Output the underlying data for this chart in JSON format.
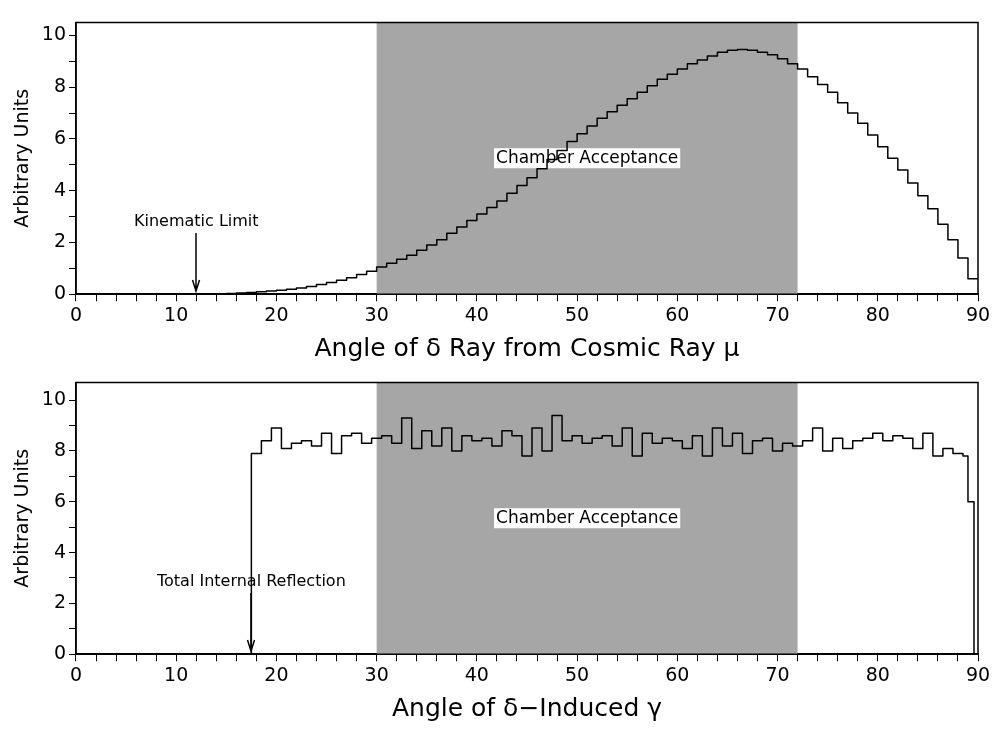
{
  "chart_data": [
    {
      "type": "histogram",
      "xlabel": "Angle of δ Ray from Cosmic Ray μ",
      "ylabel": "Arbitrary Units",
      "color": "#000000",
      "bins": [
        0,
        1,
        2,
        3,
        4,
        5,
        6,
        7,
        8,
        9,
        10,
        11,
        12,
        13,
        14,
        15,
        16,
        17,
        18,
        19,
        20,
        21,
        22,
        23,
        24,
        25,
        26,
        27,
        28,
        29,
        30,
        31,
        32,
        33,
        34,
        35,
        36,
        37,
        38,
        39,
        40,
        41,
        42,
        43,
        44,
        45,
        46,
        47,
        48,
        49,
        50,
        51,
        52,
        53,
        54,
        55,
        56,
        57,
        58,
        59,
        60,
        61,
        62,
        63,
        64,
        65,
        66,
        67,
        68,
        69,
        70,
        71,
        72,
        73,
        74,
        75,
        76,
        77,
        78,
        79,
        80,
        81,
        82,
        83,
        84,
        85,
        86,
        87,
        88,
        89,
        90
      ],
      "values": [
        0,
        0,
        0,
        0,
        0,
        0,
        0,
        0,
        0,
        0,
        0,
        0,
        0,
        0.01,
        0.02,
        0.03,
        0.05,
        0.07,
        0.09,
        0.12,
        0.15,
        0.19,
        0.24,
        0.3,
        0.37,
        0.45,
        0.54,
        0.64,
        0.76,
        0.89,
        1.05,
        1.2,
        1.35,
        1.5,
        1.7,
        1.9,
        2.1,
        2.35,
        2.6,
        2.85,
        3.1,
        3.35,
        3.6,
        3.9,
        4.2,
        4.5,
        4.85,
        5.2,
        5.55,
        5.9,
        6.2,
        6.5,
        6.8,
        7.05,
        7.3,
        7.55,
        7.8,
        8.05,
        8.3,
        8.5,
        8.7,
        8.9,
        9.05,
        9.2,
        9.35,
        9.42,
        9.45,
        9.42,
        9.35,
        9.25,
        9.1,
        8.9,
        8.7,
        8.4,
        8.1,
        7.8,
        7.4,
        7.0,
        6.6,
        6.15,
        5.7,
        5.25,
        4.8,
        4.3,
        3.8,
        3.3,
        2.7,
        2.1,
        1.4,
        0.6
      ],
      "xlim": [
        0,
        90
      ],
      "ylim": [
        0,
        10.5
      ],
      "xticks": [
        0,
        {
          "value": 2,
          "label": null
        },
        {
          "value": 4,
          "label": null
        },
        {
          "value": 6,
          "label": null
        },
        {
          "value": 8,
          "label": null
        },
        10,
        {
          "value": 12,
          "label": null
        },
        {
          "value": 14,
          "label": null
        },
        {
          "value": 16,
          "label": null
        },
        {
          "value": 18,
          "label": null
        },
        20,
        {
          "value": 22,
          "label": null
        },
        {
          "value": 24,
          "label": null
        },
        {
          "value": 26,
          "label": null
        },
        {
          "value": 28,
          "label": null
        },
        30,
        {
          "value": 32,
          "label": null
        },
        {
          "value": 34,
          "label": null
        },
        {
          "value": 36,
          "label": null
        },
        {
          "value": 38,
          "label": null
        },
        40,
        {
          "value": 42,
          "label": null
        },
        {
          "value": 44,
          "label": null
        },
        {
          "value": 46,
          "label": null
        },
        {
          "value": 48,
          "label": null
        },
        50,
        {
          "value": 52,
          "label": null
        },
        {
          "value": 54,
          "label": null
        },
        {
          "value": 56,
          "label": null
        },
        {
          "value": 58,
          "label": null
        },
        60,
        {
          "value": 62,
          "label": null
        },
        {
          "value": 64,
          "label": null
        },
        {
          "value": 66,
          "label": null
        },
        {
          "value": 68,
          "label": null
        },
        70,
        {
          "value": 72,
          "label": null
        },
        {
          "value": 74,
          "label": null
        },
        {
          "value": 76,
          "label": null
        },
        {
          "value": 78,
          "label": null
        },
        80,
        {
          "value": 82,
          "label": null
        },
        {
          "value": 84,
          "label": null
        },
        {
          "value": 86,
          "label": null
        },
        {
          "value": 88,
          "label": null
        },
        90
      ],
      "yticks": [
        0,
        {
          "value": 1,
          "label": null
        },
        2,
        {
          "value": 3,
          "label": null
        },
        4,
        {
          "value": 5,
          "label": null
        },
        6,
        {
          "value": 7,
          "label": null
        },
        8,
        {
          "value": 9,
          "label": null
        },
        10
      ],
      "bands": [
        {
          "axis": "x",
          "from": 30,
          "to": 72,
          "label": "Chamber Acceptance",
          "color": "#a6a6a6"
        }
      ],
      "annotations": [
        {
          "text": "Kinematic Limit",
          "x": 12,
          "y": 0
        }
      ],
      "grid": false,
      "legend": false
    },
    {
      "type": "histogram",
      "xlabel": "Angle of δ−Induced γ",
      "ylabel": "Arbitrary Units",
      "color": "#000000",
      "bins": [
        0,
        17.5,
        18.5,
        19.5,
        20.5,
        21.5,
        22.5,
        23.5,
        24.5,
        25.5,
        26.5,
        27.5,
        28.5,
        29.5,
        30.5,
        31.5,
        32.5,
        33.5,
        34.5,
        35.5,
        36.5,
        37.5,
        38.5,
        39.5,
        40.5,
        41.5,
        42.5,
        43.5,
        44.5,
        45.5,
        46.5,
        47.5,
        48.5,
        49.5,
        50.5,
        51.5,
        52.5,
        53.5,
        54.5,
        55.5,
        56.5,
        57.5,
        58.5,
        59.5,
        60.5,
        61.5,
        62.5,
        63.5,
        64.5,
        65.5,
        66.5,
        67.5,
        68.5,
        69.5,
        70.5,
        71.5,
        72.5,
        73.5,
        74.5,
        75.5,
        76.5,
        77.5,
        78.5,
        79.5,
        80.5,
        81.5,
        82.5,
        83.5,
        84.5,
        85.5,
        86.5,
        87.5,
        88.5,
        89,
        89.6,
        90
      ],
      "values": [
        0,
        7.9,
        8.4,
        8.9,
        8.1,
        8.3,
        8.4,
        8.2,
        8.7,
        7.9,
        8.6,
        8.7,
        8.3,
        8.5,
        8.6,
        8.3,
        9.3,
        8.1,
        8.8,
        8.2,
        8.9,
        8.0,
        8.6,
        8.4,
        8.5,
        8.2,
        8.8,
        8.6,
        7.8,
        8.9,
        8.0,
        9.4,
        8.4,
        8.6,
        8.3,
        8.5,
        8.6,
        8.2,
        8.9,
        7.8,
        8.7,
        8.3,
        8.5,
        8.4,
        8.1,
        8.6,
        7.8,
        8.9,
        8.2,
        8.7,
        7.9,
        8.4,
        8.5,
        8.0,
        8.3,
        8.2,
        8.4,
        8.9,
        8.0,
        8.5,
        8.1,
        8.4,
        8.5,
        8.7,
        8.4,
        8.6,
        8.5,
        8.1,
        8.7,
        7.8,
        8.1,
        7.9,
        7.8,
        6.0,
        0
      ],
      "xlim": [
        0,
        90
      ],
      "ylim": [
        0,
        10.7
      ],
      "xticks": [
        0,
        {
          "value": 2,
          "label": null
        },
        {
          "value": 4,
          "label": null
        },
        {
          "value": 6,
          "label": null
        },
        {
          "value": 8,
          "label": null
        },
        10,
        {
          "value": 12,
          "label": null
        },
        {
          "value": 14,
          "label": null
        },
        {
          "value": 16,
          "label": null
        },
        {
          "value": 18,
          "label": null
        },
        20,
        {
          "value": 22,
          "label": null
        },
        {
          "value": 24,
          "label": null
        },
        {
          "value": 26,
          "label": null
        },
        {
          "value": 28,
          "label": null
        },
        30,
        {
          "value": 32,
          "label": null
        },
        {
          "value": 34,
          "label": null
        },
        {
          "value": 36,
          "label": null
        },
        {
          "value": 38,
          "label": null
        },
        40,
        {
          "value": 42,
          "label": null
        },
        {
          "value": 44,
          "label": null
        },
        {
          "value": 46,
          "label": null
        },
        {
          "value": 48,
          "label": null
        },
        50,
        {
          "value": 52,
          "label": null
        },
        {
          "value": 54,
          "label": null
        },
        {
          "value": 56,
          "label": null
        },
        {
          "value": 58,
          "label": null
        },
        60,
        {
          "value": 62,
          "label": null
        },
        {
          "value": 64,
          "label": null
        },
        {
          "value": 66,
          "label": null
        },
        {
          "value": 68,
          "label": null
        },
        70,
        {
          "value": 72,
          "label": null
        },
        {
          "value": 74,
          "label": null
        },
        {
          "value": 76,
          "label": null
        },
        {
          "value": 78,
          "label": null
        },
        80,
        {
          "value": 82,
          "label": null
        },
        {
          "value": 84,
          "label": null
        },
        {
          "value": 86,
          "label": null
        },
        {
          "value": 88,
          "label": null
        },
        90
      ],
      "yticks": [
        0,
        {
          "value": 1,
          "label": null
        },
        2,
        {
          "value": 3,
          "label": null
        },
        4,
        {
          "value": 5,
          "label": null
        },
        6,
        {
          "value": 7,
          "label": null
        },
        8,
        {
          "value": 9,
          "label": null
        },
        10
      ],
      "bands": [
        {
          "axis": "x",
          "from": 30,
          "to": 72,
          "label": "Chamber Acceptance",
          "color": "#a6a6a6"
        }
      ],
      "annotations": [
        {
          "text": "Total Internal Reflection",
          "x": 17.5,
          "y": 0
        }
      ],
      "grid": false,
      "legend": false
    }
  ]
}
